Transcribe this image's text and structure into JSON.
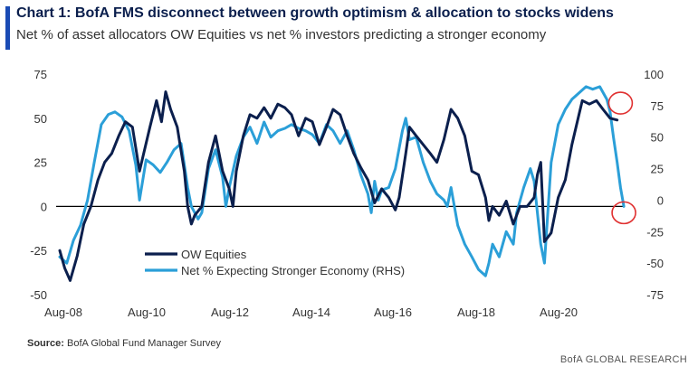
{
  "header": {
    "title": "Chart 1: BofA FMS disconnect between growth optimism & allocation to stocks widens",
    "subtitle": "Net % of asset allocators OW Equities vs net % investors predicting a stronger economy"
  },
  "footer": {
    "source_label": "Source:",
    "source_text": "BofA Global Fund Manager Survey",
    "brand": "BofA GLOBAL RESEARCH"
  },
  "colors": {
    "accent": "#1a4bb5",
    "ow_equities": "#0b1f4d",
    "stronger_economy": "#2b9fd8",
    "highlight_circle": "#e03030"
  },
  "chart_data": {
    "type": "line",
    "x_tick_labels": [
      "Aug-08",
      "Aug-10",
      "Aug-12",
      "Aug-14",
      "Aug-16",
      "Aug-18",
      "Aug-20"
    ],
    "x_range": [
      2008.5,
      2022.1
    ],
    "y_left": {
      "ticks": [
        "75",
        "50",
        "25",
        "0",
        "-25",
        "-50"
      ],
      "ylim": [
        -50,
        75
      ]
    },
    "y_right": {
      "ticks": [
        "100",
        "75",
        "50",
        "25",
        "0",
        "-25",
        "-50",
        "-75"
      ],
      "ylim": [
        -75,
        100
      ]
    },
    "grid": false,
    "zero_line": true,
    "legend_position": "bottom-center",
    "series": [
      {
        "name": "OW Equities",
        "axis": "left",
        "color": "#0b1f4d",
        "points": [
          [
            2008.5,
            -25
          ],
          [
            2008.62,
            -35
          ],
          [
            2008.75,
            -42
          ],
          [
            2008.92,
            -28
          ],
          [
            2009.08,
            -10
          ],
          [
            2009.25,
            0
          ],
          [
            2009.42,
            15
          ],
          [
            2009.58,
            25
          ],
          [
            2009.75,
            30
          ],
          [
            2009.92,
            40
          ],
          [
            2010.08,
            48
          ],
          [
            2010.25,
            45
          ],
          [
            2010.42,
            20
          ],
          [
            2010.5,
            28
          ],
          [
            2010.67,
            45
          ],
          [
            2010.83,
            60
          ],
          [
            2010.95,
            48
          ],
          [
            2011.05,
            65
          ],
          [
            2011.17,
            55
          ],
          [
            2011.33,
            45
          ],
          [
            2011.5,
            20
          ],
          [
            2011.58,
            0
          ],
          [
            2011.67,
            -10
          ],
          [
            2011.75,
            -5
          ],
          [
            2011.92,
            0
          ],
          [
            2012.08,
            25
          ],
          [
            2012.25,
            40
          ],
          [
            2012.42,
            20
          ],
          [
            2012.58,
            10
          ],
          [
            2012.67,
            0
          ],
          [
            2012.75,
            20
          ],
          [
            2012.92,
            40
          ],
          [
            2013.08,
            52
          ],
          [
            2013.25,
            50
          ],
          [
            2013.42,
            56
          ],
          [
            2013.58,
            50
          ],
          [
            2013.75,
            58
          ],
          [
            2013.92,
            56
          ],
          [
            2014.08,
            52
          ],
          [
            2014.25,
            40
          ],
          [
            2014.42,
            50
          ],
          [
            2014.58,
            48
          ],
          [
            2014.75,
            35
          ],
          [
            2014.92,
            45
          ],
          [
            2015.08,
            55
          ],
          [
            2015.25,
            52
          ],
          [
            2015.42,
            40
          ],
          [
            2015.58,
            30
          ],
          [
            2015.75,
            22
          ],
          [
            2015.92,
            15
          ],
          [
            2016.08,
            2
          ],
          [
            2016.25,
            10
          ],
          [
            2016.42,
            5
          ],
          [
            2016.58,
            -2
          ],
          [
            2016.67,
            5
          ],
          [
            2016.83,
            30
          ],
          [
            2016.92,
            45
          ],
          [
            2017.08,
            40
          ],
          [
            2017.25,
            35
          ],
          [
            2017.42,
            30
          ],
          [
            2017.58,
            25
          ],
          [
            2017.75,
            38
          ],
          [
            2017.92,
            55
          ],
          [
            2018.08,
            50
          ],
          [
            2018.25,
            40
          ],
          [
            2018.42,
            20
          ],
          [
            2018.58,
            18
          ],
          [
            2018.75,
            5
          ],
          [
            2018.83,
            -8
          ],
          [
            2018.92,
            0
          ],
          [
            2019.08,
            -5
          ],
          [
            2019.25,
            3
          ],
          [
            2019.42,
            -10
          ],
          [
            2019.58,
            0
          ],
          [
            2019.75,
            0
          ],
          [
            2019.92,
            5
          ],
          [
            2020.0,
            18
          ],
          [
            2020.08,
            25
          ],
          [
            2020.17,
            -20
          ],
          [
            2020.33,
            -15
          ],
          [
            2020.5,
            5
          ],
          [
            2020.67,
            15
          ],
          [
            2020.83,
            35
          ],
          [
            2021.0,
            52
          ],
          [
            2021.08,
            60
          ],
          [
            2021.25,
            58
          ],
          [
            2021.42,
            60
          ],
          [
            2021.58,
            55
          ],
          [
            2021.75,
            50
          ],
          [
            2021.92,
            49
          ]
        ]
      },
      {
        "name": "Net % Expecting Stronger Economy (RHS)",
        "axis": "right",
        "color": "#2b9fd8",
        "points": [
          [
            2008.5,
            -45
          ],
          [
            2008.67,
            -50
          ],
          [
            2008.83,
            -32
          ],
          [
            2009.0,
            -20
          ],
          [
            2009.17,
            0
          ],
          [
            2009.33,
            30
          ],
          [
            2009.5,
            60
          ],
          [
            2009.67,
            68
          ],
          [
            2009.83,
            70
          ],
          [
            2010.0,
            66
          ],
          [
            2010.17,
            55
          ],
          [
            2010.33,
            28
          ],
          [
            2010.42,
            0
          ],
          [
            2010.58,
            32
          ],
          [
            2010.75,
            28
          ],
          [
            2010.92,
            22
          ],
          [
            2011.08,
            30
          ],
          [
            2011.25,
            40
          ],
          [
            2011.42,
            45
          ],
          [
            2011.5,
            28
          ],
          [
            2011.58,
            10
          ],
          [
            2011.67,
            -5
          ],
          [
            2011.83,
            -15
          ],
          [
            2011.92,
            -10
          ],
          [
            2012.08,
            25
          ],
          [
            2012.25,
            40
          ],
          [
            2012.42,
            18
          ],
          [
            2012.5,
            -5
          ],
          [
            2012.58,
            10
          ],
          [
            2012.75,
            35
          ],
          [
            2012.92,
            50
          ],
          [
            2013.08,
            58
          ],
          [
            2013.25,
            45
          ],
          [
            2013.42,
            62
          ],
          [
            2013.58,
            50
          ],
          [
            2013.75,
            55
          ],
          [
            2013.92,
            57
          ],
          [
            2014.08,
            60
          ],
          [
            2014.25,
            57
          ],
          [
            2014.42,
            55
          ],
          [
            2014.58,
            52
          ],
          [
            2014.75,
            45
          ],
          [
            2014.92,
            60
          ],
          [
            2015.08,
            55
          ],
          [
            2015.25,
            45
          ],
          [
            2015.42,
            55
          ],
          [
            2015.58,
            40
          ],
          [
            2015.75,
            20
          ],
          [
            2015.92,
            5
          ],
          [
            2016.0,
            -10
          ],
          [
            2016.08,
            15
          ],
          [
            2016.17,
            0
          ],
          [
            2016.25,
            8
          ],
          [
            2016.42,
            10
          ],
          [
            2016.58,
            25
          ],
          [
            2016.75,
            55
          ],
          [
            2016.83,
            65
          ],
          [
            2016.92,
            48
          ],
          [
            2017.08,
            50
          ],
          [
            2017.25,
            30
          ],
          [
            2017.42,
            15
          ],
          [
            2017.58,
            5
          ],
          [
            2017.75,
            0
          ],
          [
            2017.83,
            -5
          ],
          [
            2017.92,
            10
          ],
          [
            2018.08,
            -20
          ],
          [
            2018.25,
            -35
          ],
          [
            2018.42,
            -45
          ],
          [
            2018.58,
            -55
          ],
          [
            2018.75,
            -60
          ],
          [
            2018.83,
            -50
          ],
          [
            2018.92,
            -35
          ],
          [
            2019.08,
            -45
          ],
          [
            2019.25,
            -25
          ],
          [
            2019.42,
            -35
          ],
          [
            2019.5,
            -10
          ],
          [
            2019.67,
            10
          ],
          [
            2019.83,
            25
          ],
          [
            2019.92,
            15
          ],
          [
            2020.0,
            -10
          ],
          [
            2020.08,
            -35
          ],
          [
            2020.17,
            -50
          ],
          [
            2020.33,
            30
          ],
          [
            2020.5,
            60
          ],
          [
            2020.67,
            72
          ],
          [
            2020.83,
            80
          ],
          [
            2021.0,
            85
          ],
          [
            2021.17,
            90
          ],
          [
            2021.33,
            88
          ],
          [
            2021.5,
            90
          ],
          [
            2021.67,
            80
          ],
          [
            2021.75,
            70
          ],
          [
            2021.83,
            50
          ],
          [
            2021.92,
            30
          ],
          [
            2022.0,
            10
          ],
          [
            2022.08,
            -5
          ]
        ]
      }
    ],
    "annotations": [
      {
        "type": "circle",
        "color": "#e03030",
        "x": 2022.0,
        "y_right": 77
      },
      {
        "type": "circle",
        "color": "#e03030",
        "x": 2022.08,
        "y_right": -10
      }
    ]
  }
}
